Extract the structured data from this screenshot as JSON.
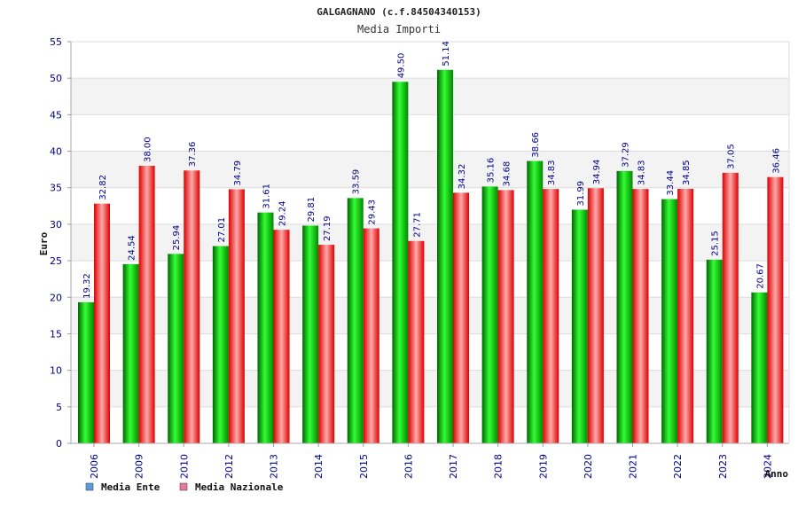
{
  "chart_data": {
    "type": "bar",
    "title": "GALGAGNANO (c.f.84504340153)",
    "subtitle": "Media Importi",
    "ylabel": "Euro",
    "xlabel": "Anno",
    "ylim": [
      0,
      55
    ],
    "yticks": [
      0,
      5,
      10,
      15,
      20,
      25,
      30,
      35,
      40,
      45,
      50,
      55
    ],
    "grid": true,
    "legend_position": "bottom-left",
    "categories": [
      "2006",
      "2009",
      "2010",
      "2012",
      "2013",
      "2014",
      "2015",
      "2016",
      "2017",
      "2018",
      "2019",
      "2020",
      "2021",
      "2022",
      "2023",
      "2024"
    ],
    "series": [
      {
        "name": "Media Ente",
        "color": "#00bb00",
        "legend_color": "#5a9be0",
        "values": [
          19.32,
          24.54,
          25.94,
          27.01,
          31.61,
          29.81,
          33.59,
          49.5,
          51.14,
          35.16,
          38.66,
          31.99,
          37.29,
          33.44,
          25.15,
          20.67
        ],
        "labels": [
          "19.32",
          "24.54",
          "25.94",
          "27.01",
          "31.61",
          "29.81",
          "33.59",
          "49.50",
          "51.14",
          "35.16",
          "38.66",
          "31.99",
          "37.29",
          "33.44",
          "25.15",
          "20.67"
        ]
      },
      {
        "name": "Media Nazionale",
        "color": "#ee1111",
        "legend_color": "#e37aa0",
        "values": [
          32.82,
          38.0,
          37.36,
          34.79,
          29.24,
          27.19,
          29.43,
          27.71,
          34.32,
          34.68,
          34.83,
          34.94,
          34.83,
          34.85,
          37.05,
          36.46
        ],
        "labels": [
          "32.82",
          "38.00",
          "37.36",
          "34.79",
          "29.24",
          "27.19",
          "29.43",
          "27.71",
          "34.32",
          "34.68",
          "34.83",
          "34.94",
          "34.83",
          "34.85",
          "37.05",
          "36.46"
        ]
      }
    ]
  }
}
